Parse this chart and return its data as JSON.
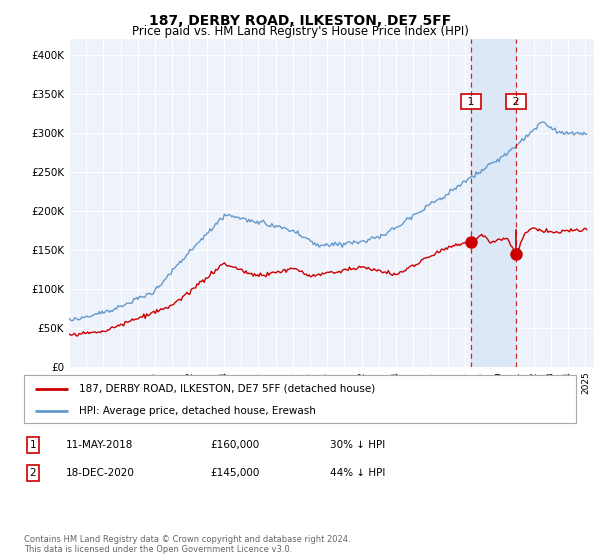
{
  "title": "187, DERBY ROAD, ILKESTON, DE7 5FF",
  "subtitle": "Price paid vs. HM Land Registry's House Price Index (HPI)",
  "ylabel_ticks": [
    "£0",
    "£50K",
    "£100K",
    "£150K",
    "£200K",
    "£250K",
    "£300K",
    "£350K",
    "£400K"
  ],
  "ytick_vals": [
    0,
    50000,
    100000,
    150000,
    200000,
    250000,
    300000,
    350000,
    400000
  ],
  "ylim": [
    0,
    420000
  ],
  "xmin": 1995.0,
  "xmax": 2025.5,
  "transaction1": {
    "year": 2018.37,
    "price": 160000,
    "label": "1",
    "date": "11-MAY-2018",
    "pct": "30% ↓ HPI"
  },
  "transaction2": {
    "year": 2020.96,
    "price": 145000,
    "label": "2",
    "date": "18-DEC-2020",
    "pct": "44% ↓ HPI"
  },
  "legend_line1": "187, DERBY ROAD, ILKESTON, DE7 5FF (detached house)",
  "legend_line2": "HPI: Average price, detached house, Erewash",
  "footnote": "Contains HM Land Registry data © Crown copyright and database right 2024.\nThis data is licensed under the Open Government Licence v3.0.",
  "line_color_red": "#cc0000",
  "line_color_blue": "#6699cc",
  "vline_color": "#cc0000",
  "shade_color": "#dce8f5",
  "background_color": "#ffffff",
  "plot_bg_color": "#eef2fa",
  "grid_color": "#ffffff"
}
